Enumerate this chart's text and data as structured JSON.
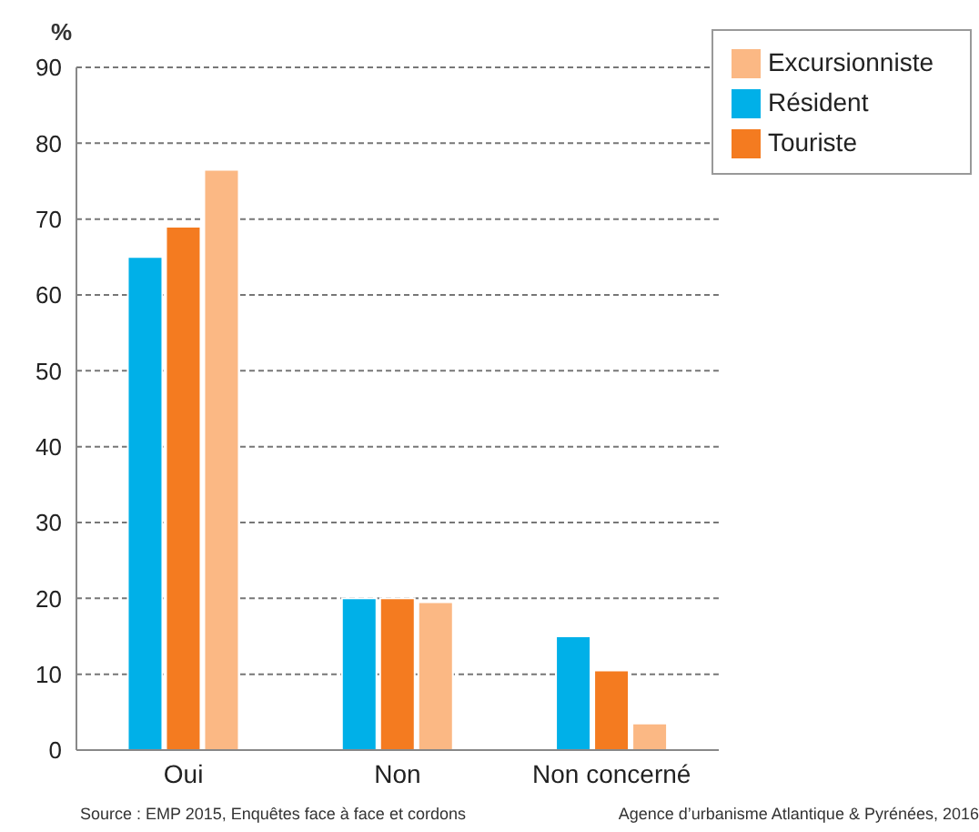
{
  "chart_data": {
    "type": "bar",
    "ylabel": "%",
    "categories": [
      "Oui",
      "Non",
      "Non concerné"
    ],
    "series": [
      {
        "name": "Résident",
        "color": "#00b0e8",
        "values": [
          65,
          20,
          15
        ]
      },
      {
        "name": "Touriste",
        "color": "#f47b20",
        "values": [
          69,
          20,
          10.5
        ]
      },
      {
        "name": "Excursionniste",
        "color": "#fbb884",
        "values": [
          76.5,
          19.5,
          3.5
        ]
      }
    ],
    "ylim": [
      0,
      90
    ],
    "yticks": [
      0,
      10,
      20,
      30,
      40,
      50,
      60,
      70,
      80,
      90
    ],
    "grid": "y",
    "legend": "top right",
    "annotations": [
      "Source : EMP 2015, Enquêtes face à face et cordons",
      "Agence d’urbanisme Atlantique & Pyrénées, 2016"
    ]
  }
}
